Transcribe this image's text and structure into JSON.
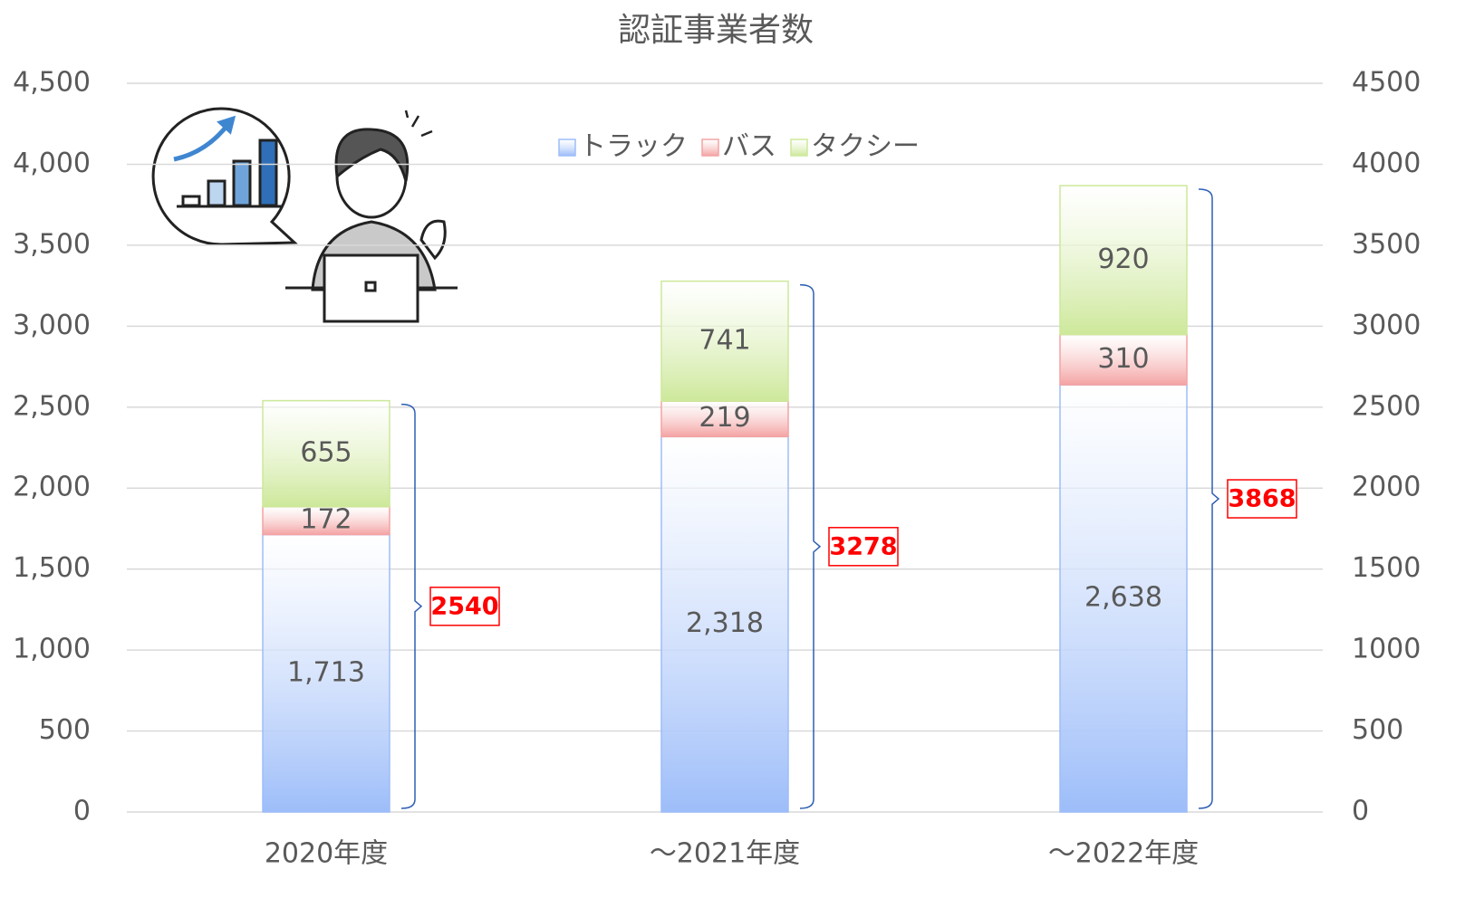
{
  "chart_data": {
    "type": "stacked_bar",
    "title": "認証事業者数",
    "categories": [
      "2020年度",
      "～2021年度",
      "～2022年度"
    ],
    "series": [
      {
        "name": "トラック",
        "color": "#9dbdf9",
        "values": [
          1713,
          2318,
          2638
        ],
        "value_labels": [
          "1,713",
          "2,318",
          "2,638"
        ]
      },
      {
        "name": "バス",
        "color": "#f4a3a3",
        "values": [
          172,
          219,
          310
        ]
      },
      {
        "name": "タクシー",
        "color": "#cde89a",
        "values": [
          655,
          741,
          920
        ]
      }
    ],
    "totals": [
      2540,
      3278,
      3868
    ],
    "ylim": [
      0,
      4500
    ],
    "yticks": [
      0,
      500,
      {
        "value": 1000,
        "label": "1,000"
      },
      {
        "value": 1500,
        "label": "1,500"
      },
      {
        "value": 2000,
        "label": "2,000"
      },
      {
        "value": 2500,
        "label": "2,500"
      },
      {
        "value": 3000,
        "label": "3,000"
      },
      {
        "value": 3500,
        "label": "3,500"
      },
      {
        "value": 4000,
        "label": "4,000"
      },
      {
        "value": 4500,
        "label": "4,500"
      }
    ],
    "y2lim": [
      0,
      4500
    ],
    "y2ticks": [
      0,
      500,
      1000,
      1500,
      2000,
      2500,
      3000,
      3500,
      4000,
      4500
    ],
    "grid": true,
    "legend": "top"
  }
}
